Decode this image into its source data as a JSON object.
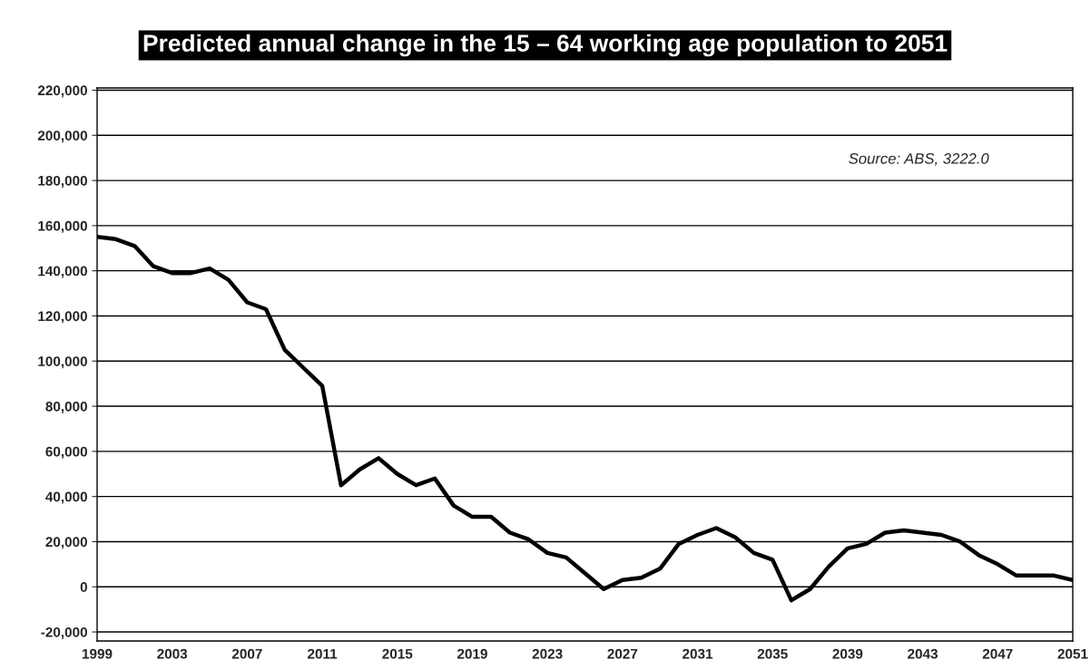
{
  "chart_data": {
    "type": "line",
    "title": "Predicted annual change in the 15 – 64 working age population to 2051",
    "annotations": [
      "Source: ABS, 3222.0"
    ],
    "x": [
      1999,
      2000,
      2001,
      2002,
      2003,
      2004,
      2005,
      2006,
      2007,
      2008,
      2009,
      2010,
      2011,
      2012,
      2013,
      2014,
      2015,
      2016,
      2017,
      2018,
      2019,
      2020,
      2021,
      2022,
      2023,
      2024,
      2025,
      2026,
      2027,
      2028,
      2029,
      2030,
      2031,
      2032,
      2033,
      2034,
      2035,
      2036,
      2037,
      2038,
      2039,
      2040,
      2041,
      2042,
      2043,
      2044,
      2045,
      2046,
      2047,
      2048,
      2049,
      2050,
      2051
    ],
    "series": [
      {
        "color": "#000000",
        "values": [
          155000,
          154000,
          151000,
          142000,
          139000,
          139000,
          141000,
          136000,
          126000,
          123000,
          105000,
          97000,
          89000,
          45000,
          52000,
          57000,
          50000,
          45000,
          48000,
          36000,
          31000,
          31000,
          24000,
          21000,
          15000,
          13000,
          6000,
          -1000,
          3000,
          4000,
          8000,
          19000,
          23000,
          26000,
          22000,
          15000,
          12000,
          -6000,
          -1000,
          9000,
          17000,
          19000,
          24000,
          25000,
          24000,
          23000,
          20000,
          14000,
          10000,
          5000,
          5000,
          5000,
          3000
        ]
      }
    ],
    "xlim": [
      1999,
      2051
    ],
    "xticks": [
      1999,
      2003,
      2007,
      2011,
      2015,
      2019,
      2023,
      2027,
      2031,
      2035,
      2039,
      2043,
      2047,
      2051
    ],
    "ylim": [
      -24000,
      221000
    ],
    "yticks": [
      {
        "value": -20000,
        "label": "-20,000"
      },
      {
        "value": 0,
        "label": "0"
      },
      {
        "value": 20000,
        "label": "20,000"
      },
      {
        "value": 40000,
        "label": "40,000"
      },
      {
        "value": 60000,
        "label": "60,000"
      },
      {
        "value": 80000,
        "label": "80,000"
      },
      {
        "value": 100000,
        "label": "100,000"
      },
      {
        "value": 120000,
        "label": "120,000"
      },
      {
        "value": 140000,
        "label": "140,000"
      },
      {
        "value": 160000,
        "label": "160,000"
      },
      {
        "value": 180000,
        "label": "180,000"
      },
      {
        "value": 200000,
        "label": "200,000"
      },
      {
        "value": 220000,
        "label": "220,000"
      }
    ],
    "grid": "y",
    "legend": false,
    "marker": "none",
    "line_style": "solid"
  }
}
